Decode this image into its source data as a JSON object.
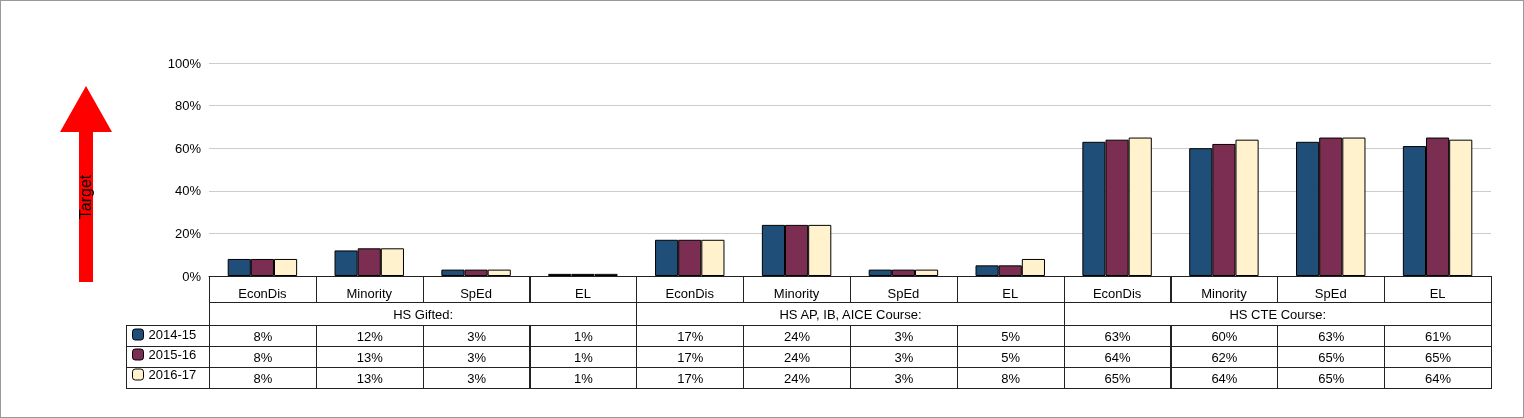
{
  "chart_data": {
    "type": "bar",
    "categories": [
      "EconDis",
      "Minority",
      "SpEd",
      "EL",
      "EconDis",
      "Minority",
      "SpEd",
      "EL",
      "EconDis",
      "Minority",
      "SpEd",
      "EL"
    ],
    "series": [
      {
        "name": "2014-15",
        "color": "#1f4e79",
        "values": [
          8,
          12,
          3,
          1,
          17,
          24,
          3,
          5,
          63,
          60,
          63,
          61
        ],
        "value_labels": [
          "8%",
          "12%",
          "3%",
          "1%",
          "17%",
          "24%",
          "3%",
          "5%",
          "63%",
          "60%",
          "63%",
          "61%"
        ]
      },
      {
        "name": "2015-16",
        "color": "#7b2d52",
        "values": [
          8,
          13,
          3,
          1,
          17,
          24,
          3,
          5,
          64,
          62,
          65,
          65
        ],
        "value_labels": [
          "8%",
          "13%",
          "3%",
          "1%",
          "17%",
          "24%",
          "3%",
          "5%",
          "64%",
          "62%",
          "65%",
          "65%"
        ]
      },
      {
        "name": "2016-17",
        "color": "#fff2cc",
        "values": [
          8,
          13,
          3,
          1,
          17,
          24,
          3,
          8,
          65,
          64,
          65,
          64
        ],
        "value_labels": [
          "8%",
          "13%",
          "3%",
          "1%",
          "17%",
          "24%",
          "3%",
          "8%",
          "65%",
          "64%",
          "65%",
          "64%"
        ]
      }
    ],
    "ylim": [
      0,
      100
    ],
    "yticks": [
      {
        "value": 0,
        "label": "0%"
      },
      {
        "value": 20,
        "label": "20%"
      },
      {
        "value": 40,
        "label": "40%"
      },
      {
        "value": 60,
        "label": "60%"
      },
      {
        "value": 80,
        "label": "80%"
      },
      {
        "value": 100,
        "label": "100%"
      }
    ],
    "grid": "y",
    "legend": "bottom left",
    "annotations": [
      "Target",
      "HS Gifted:",
      "HS AP, IB, AICE Course:",
      "HS CTE Course:"
    ]
  }
}
